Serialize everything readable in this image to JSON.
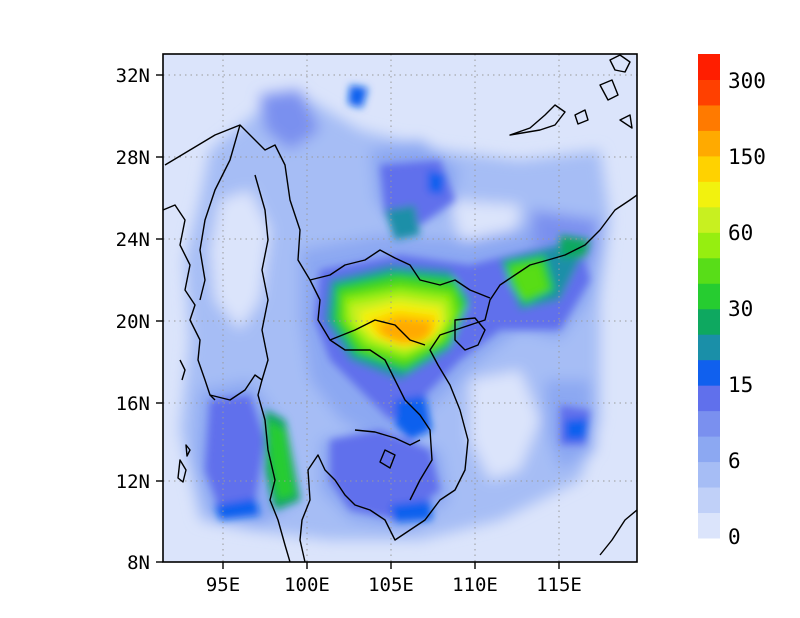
{
  "map": {
    "lon_range": [
      91.5,
      119.5
    ],
    "lat_range": [
      8,
      33
    ],
    "grid": "dotted",
    "x_ticks": [
      "95E",
      "100E",
      "105E",
      "110E",
      "115E"
    ],
    "x_tick_values": [
      95,
      100,
      105,
      110,
      115
    ],
    "y_ticks": [
      "32N",
      "28N",
      "24N",
      "20N",
      "16N",
      "12N",
      "8N"
    ],
    "y_tick_values": [
      32,
      28,
      24,
      20,
      16,
      12,
      8
    ],
    "colorbar": {
      "colors": [
        "#dbe4fb",
        "#c0d0f8",
        "#a6bdf5",
        "#8ca8f2",
        "#7a90ef",
        "#6070ec",
        "#1060ee",
        "#1a8fa8",
        "#0ea860",
        "#26cc30",
        "#58dd18",
        "#96ee10",
        "#c8f020",
        "#f2f20e",
        "#ffd200",
        "#ffaa00",
        "#ff7a00",
        "#ff4000",
        "#ff1e00"
      ],
      "labels": [
        "0",
        "6",
        "15",
        "30",
        "60",
        "150",
        "300"
      ]
    }
  },
  "chart_data": {
    "type": "heatmap",
    "title": "",
    "xlabel": "",
    "ylabel": "",
    "xlim": [
      91.5,
      119.5
    ],
    "ylim": [
      8,
      33
    ],
    "colorbar_labels": [
      "0",
      "6",
      "15",
      "30",
      "60",
      "150",
      "300"
    ],
    "regions": [
      {
        "lon": 106,
        "lat": 19.5,
        "value": 200
      },
      {
        "lon": 104,
        "lat": 21.5,
        "value": 100
      },
      {
        "lon": 112,
        "lat": 22,
        "value": 80
      },
      {
        "lon": 98,
        "lat": 13,
        "value": 40
      },
      {
        "lon": 105.5,
        "lat": 26,
        "value": 30
      },
      {
        "lon": 108,
        "lat": 28,
        "value": 15
      },
      {
        "lon": 94,
        "lat": 14,
        "value": 15
      },
      {
        "lon": 115,
        "lat": 15,
        "value": 15
      }
    ]
  }
}
